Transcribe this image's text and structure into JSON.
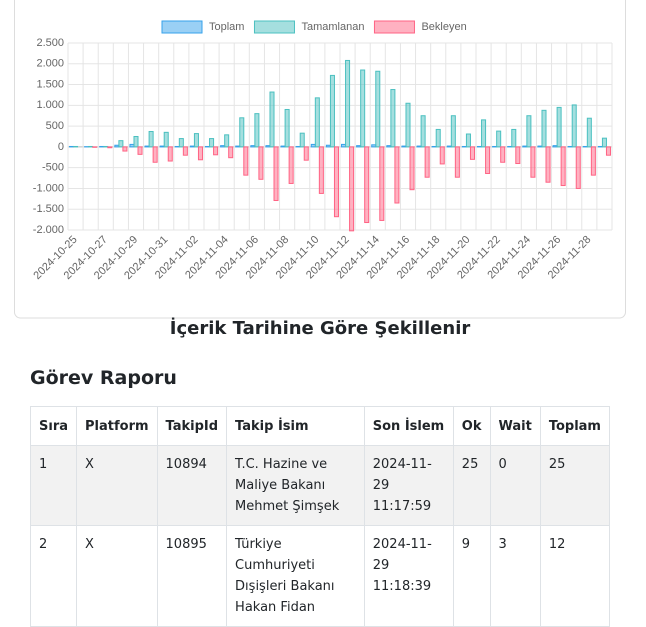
{
  "chart_data": {
    "type": "bar",
    "title": "İçerik Tarihine Göre Şekillenir",
    "categories": [
      "2024-10-25",
      null,
      "2024-10-27",
      null,
      "2024-10-29",
      null,
      "2024-10-31",
      null,
      "2024-11-02",
      null,
      "2024-11-04",
      null,
      "2024-11-06",
      null,
      "2024-11-08",
      null,
      "2024-11-10",
      null,
      "2024-11-12",
      null,
      "2024-11-14",
      null,
      "2024-11-16",
      null,
      "2024-11-18",
      null,
      "2024-11-20",
      null,
      "2024-11-22",
      null,
      "2024-11-24",
      null,
      "2024-11-26",
      null,
      "2024-11-28",
      null
    ],
    "series": [
      {
        "name": "Toplam",
        "color": "#36a2eb",
        "values": [
          10,
          5,
          10,
          40,
          60,
          20,
          20,
          10,
          20,
          10,
          30,
          20,
          30,
          30,
          20,
          10,
          60,
          40,
          60,
          30,
          50,
          30,
          20,
          20,
          10,
          20,
          10,
          10,
          10,
          10,
          20,
          20,
          30,
          10,
          10,
          10
        ]
      },
      {
        "name": "Tamamlanan",
        "color": "#4bc0c0",
        "values": [
          10,
          10,
          10,
          150,
          250,
          370,
          350,
          200,
          320,
          200,
          290,
          700,
          800,
          1320,
          900,
          330,
          1180,
          1720,
          2080,
          1850,
          1820,
          1380,
          1050,
          750,
          420,
          750,
          310,
          650,
          380,
          420,
          750,
          880,
          950,
          1010,
          690,
          210
        ]
      },
      {
        "name": "Bekleyen",
        "color": "#ff6384",
        "values": [
          0,
          -10,
          -20,
          -100,
          -180,
          -370,
          -340,
          -200,
          -310,
          -190,
          -260,
          -680,
          -780,
          -1290,
          -880,
          -320,
          -1120,
          -1680,
          -2020,
          -1820,
          -1770,
          -1350,
          -1030,
          -730,
          -410,
          -730,
          -300,
          -640,
          -370,
          -400,
          -730,
          -850,
          -930,
          -1000,
          -680,
          -200
        ]
      }
    ],
    "ylim": [
      -2000,
      2500
    ],
    "yticks": [
      {
        "value": -2000,
        "label": "-2.000"
      },
      {
        "value": -1500,
        "label": "-1.500"
      },
      {
        "value": -1000,
        "label": "-1.000"
      },
      -500,
      0,
      500,
      {
        "value": 1000,
        "label": "1.000"
      },
      {
        "value": 1500,
        "label": "1.500"
      },
      {
        "value": 2000,
        "label": "2.000"
      },
      {
        "value": 2500,
        "label": "2.500"
      }
    ],
    "grid": true,
    "legend": "top"
  },
  "report": {
    "title": "Görev Raporu",
    "table": {
      "header": [
        "Sıra",
        "Platform",
        "TakipId",
        "Takip İsim",
        "Son İslem",
        "Ok",
        "Wait",
        "Toplam"
      ],
      "rows": [
        [
          "1",
          "X",
          "10894",
          "T.C. Hazine ve Maliye Bakanı Mehmet Şimşek",
          "2024-11-29 11:17:59",
          "25",
          "0",
          "25"
        ],
        [
          "2",
          "X",
          "10895",
          "Türkiye Cumhuriyeti Dışişleri Bakanı Hakan Fidan",
          "2024-11-29 11:18:39",
          "9",
          "3",
          "12"
        ]
      ]
    }
  }
}
